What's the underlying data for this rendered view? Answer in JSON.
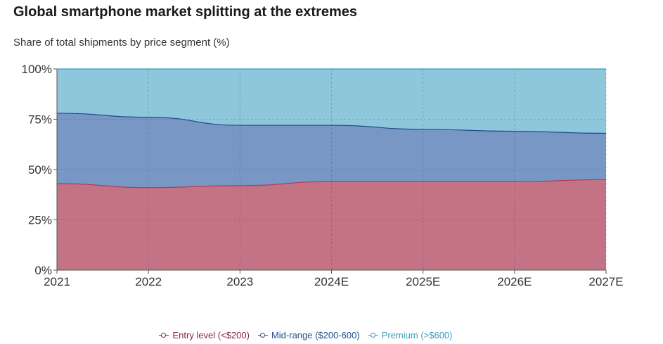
{
  "title": "Global smartphone market splitting at the extremes",
  "subtitle": "Share of total shipments by price segment (%)",
  "chart_data": {
    "type": "area",
    "stacked": true,
    "categories": [
      "2021",
      "2022",
      "2023",
      "2024E",
      "2025E",
      "2026E",
      "2027E"
    ],
    "y_ticks": [
      "0%",
      "25%",
      "50%",
      "75%",
      "100%"
    ],
    "ylim": [
      0,
      100
    ],
    "grid": true,
    "legend_position": "bottom",
    "series": [
      {
        "name": "Entry level (<$200)",
        "color": "#b23a5b",
        "fill": "#c47385",
        "values": [
          43,
          41,
          42,
          44,
          44,
          44,
          45
        ]
      },
      {
        "name": "Mid-range ($200-600)",
        "color": "#1f4e8c",
        "fill": "#7897c4",
        "values": [
          35,
          35,
          30,
          28,
          26,
          25,
          23
        ]
      },
      {
        "name": "Premium (>$600)",
        "color": "#3a9bbf",
        "fill": "#8ec6dc",
        "values": [
          22,
          24,
          28,
          28,
          30,
          31,
          32
        ]
      }
    ]
  },
  "legend": {
    "items": [
      {
        "label": "Entry level (<$200)",
        "color": "#8c1f45"
      },
      {
        "label": "Mid-range ($200-600)",
        "color": "#1f4e8c"
      },
      {
        "label": "Premium (>$600)",
        "color": "#3a9bbf"
      }
    ]
  }
}
